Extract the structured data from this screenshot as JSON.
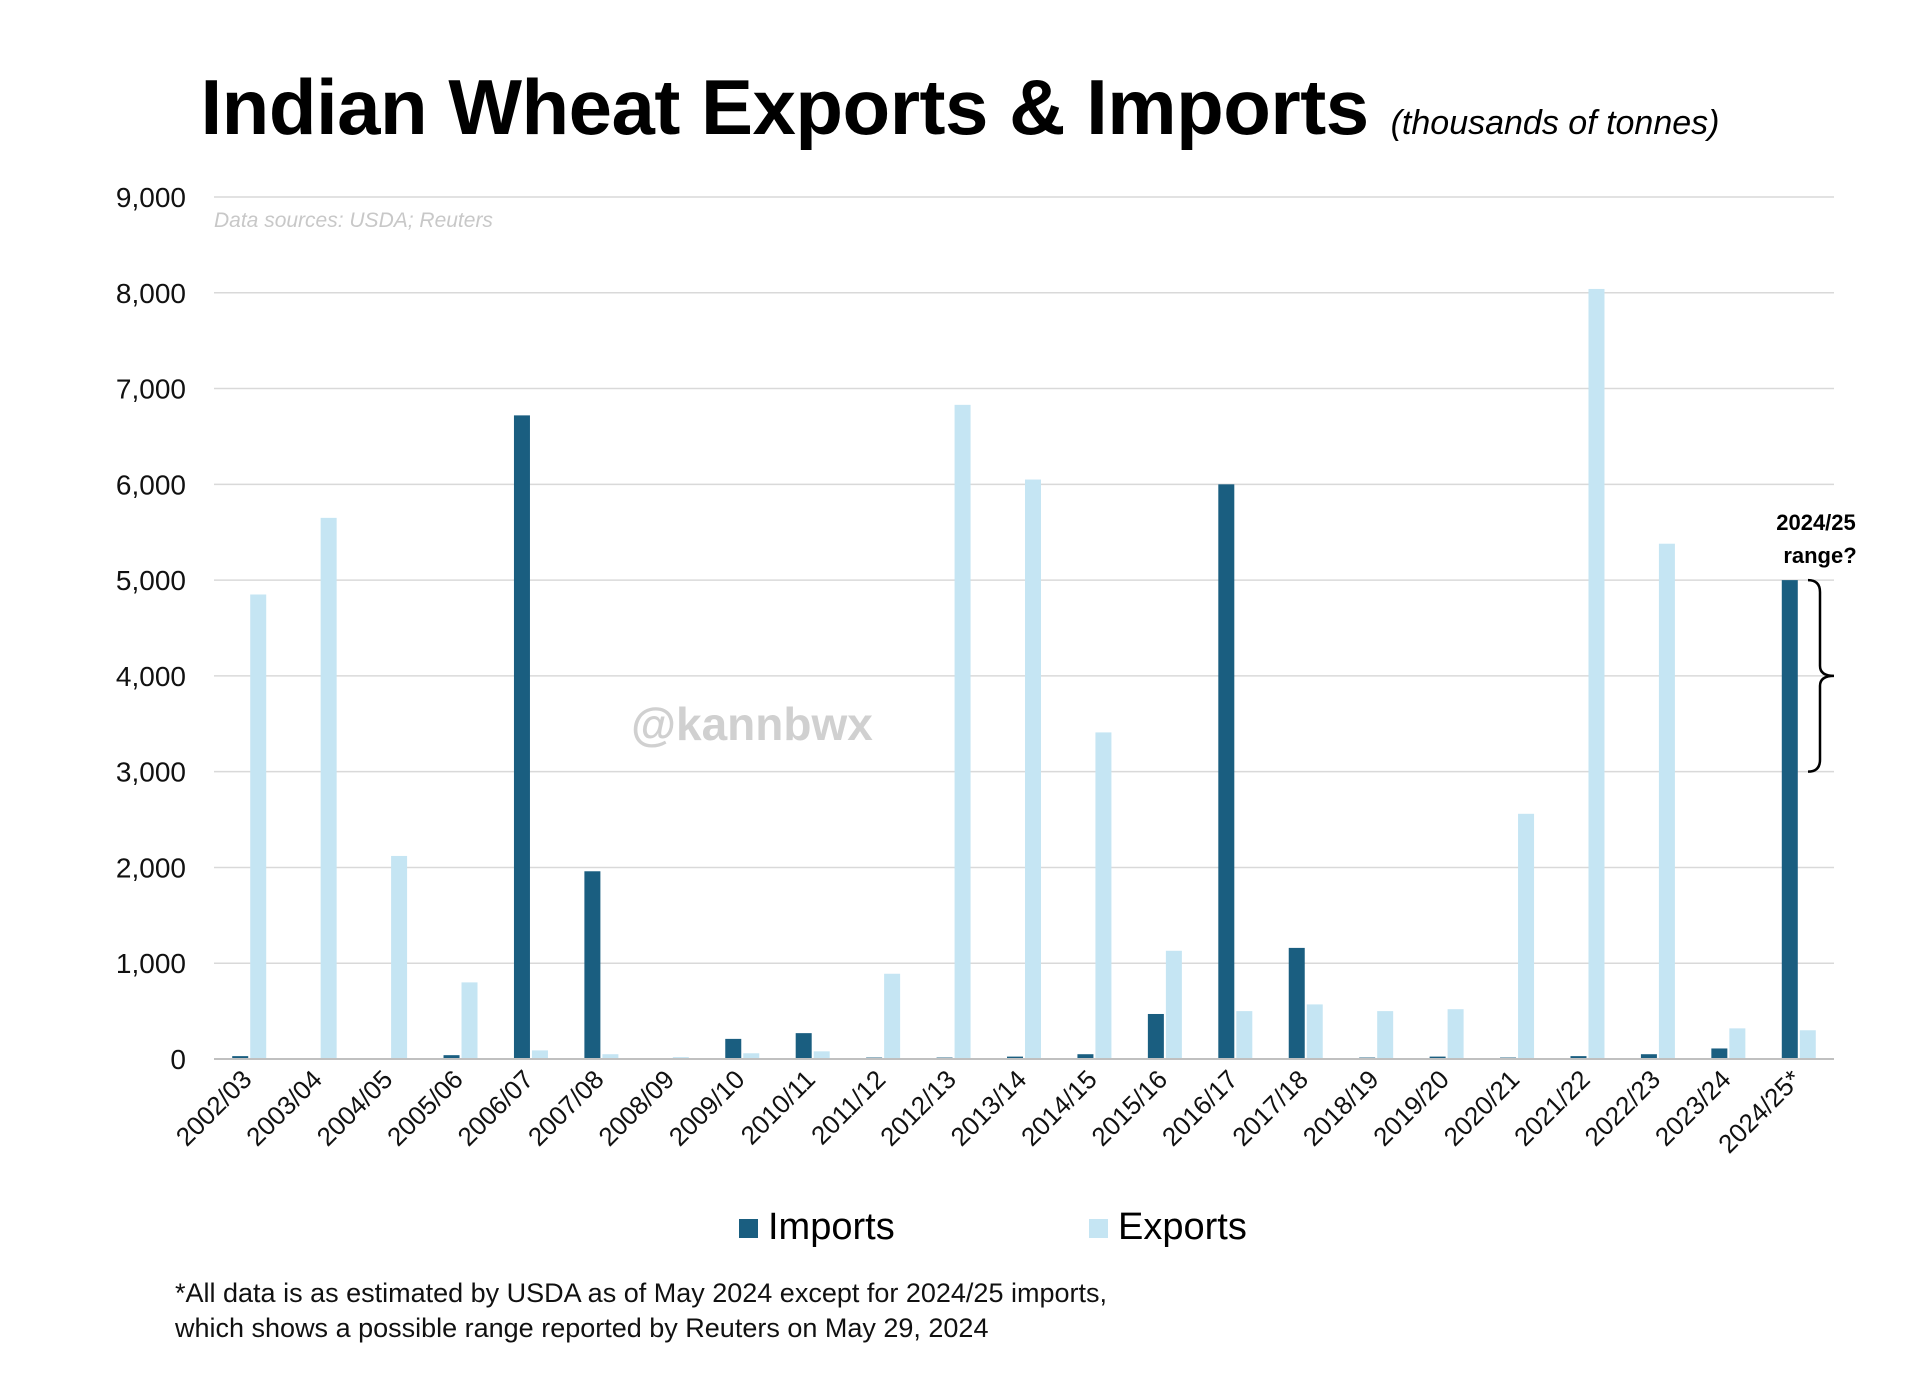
{
  "chart_data": {
    "type": "bar",
    "title": "Indian Wheat Exports & Imports",
    "subtitle": "(thousands of tonnes)",
    "source_note": "Data sources: USDA; Reuters",
    "watermark": "@kannbwx",
    "xlabel": "",
    "ylabel": "",
    "ylim": [
      0,
      9000
    ],
    "y_ticks": [
      "0",
      "1,000",
      "2,000",
      "3,000",
      "4,000",
      "5,000",
      "6,000",
      "7,000",
      "8,000",
      "9,000"
    ],
    "y_tick_values": [
      0,
      1000,
      2000,
      3000,
      4000,
      5000,
      6000,
      7000,
      8000,
      9000
    ],
    "grid": true,
    "legend_position": "bottom-center",
    "categories": [
      "2002/03",
      "2003/04",
      "2004/05",
      "2005/06",
      "2006/07",
      "2007/08",
      "2008/09",
      "2009/10",
      "2010/11",
      "2011/12",
      "2012/13",
      "2013/14",
      "2014/15",
      "2015/16",
      "2016/17",
      "2017/18",
      "2018/19",
      "2019/20",
      "2020/21",
      "2021/22",
      "2022/23",
      "2023/24",
      "2024/25*"
    ],
    "series": [
      {
        "name": "Imports",
        "color": "#1a5e80",
        "values": [
          30,
          0,
          0,
          40,
          6720,
          1960,
          0,
          210,
          270,
          15,
          15,
          25,
          50,
          470,
          6000,
          1160,
          15,
          25,
          15,
          30,
          50,
          110,
          5000
        ]
      },
      {
        "name": "Exports",
        "color": "#c5e5f3",
        "values": [
          4850,
          5650,
          2120,
          800,
          90,
          50,
          20,
          60,
          80,
          890,
          6830,
          6050,
          3410,
          1130,
          500,
          570,
          500,
          520,
          2560,
          8040,
          5380,
          320,
          300
        ]
      }
    ],
    "annotation": {
      "line1": "2024/25",
      "line2": "range?",
      "range_low": 3000,
      "range_high": 5000
    },
    "footnote": [
      "*All data is as estimated by USDA as of May 2024 except for 2024/25 imports,",
      "which shows a possible range reported by Reuters on May 29, 2024"
    ]
  }
}
